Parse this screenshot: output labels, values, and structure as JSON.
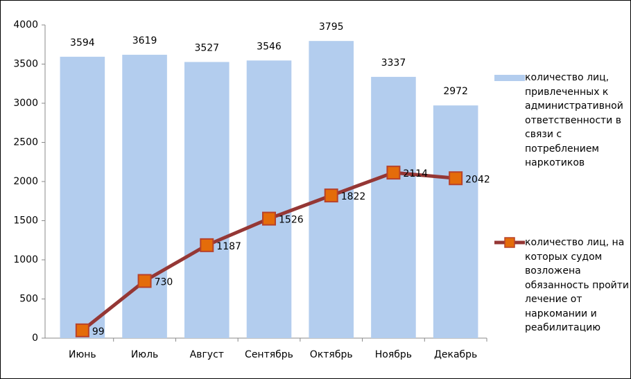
{
  "chart_data": {
    "type": "bar",
    "categories": [
      "Июнь",
      "Июль",
      "Август",
      "Сентябрь",
      "Октябрь",
      "Ноябрь",
      "Декабрь"
    ],
    "series": [
      {
        "name": "количество лиц, привлеченных к административной ответственности в связи с потреблением наркотиков",
        "type": "bar",
        "color": "#b3cdee",
        "values": [
          3594,
          3619,
          3527,
          3546,
          3795,
          3337,
          2972
        ]
      },
      {
        "name": "количество лиц, на которых судом возложена обязанность пройти лечение от наркомании и реабилитацию",
        "type": "line",
        "color": "#953735",
        "marker_color": "#e46c0a",
        "values": [
          99,
          730,
          1187,
          1526,
          1822,
          2114,
          2042
        ]
      }
    ],
    "ylim": [
      0,
      4000
    ],
    "yticks": [
      0,
      500,
      1000,
      1500,
      2000,
      2500,
      3000,
      3500,
      4000
    ],
    "grid": false,
    "legend": "right"
  }
}
